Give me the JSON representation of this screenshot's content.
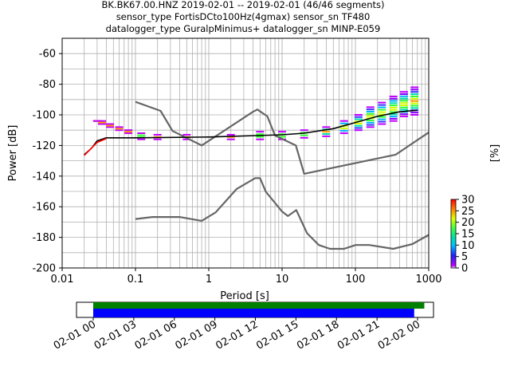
{
  "figure": {
    "title_lines": [
      "BK.BK67.00.HNZ   2019-02-01 -- 2019-02-01  (46/46 segments)",
      "sensor_type FortisDCto100Hz(4gmax) sensor_sn TF480",
      "datalogger_type GuralpMinimus+ datalogger_sn MINP-E059"
    ]
  },
  "chart_data": [
    {
      "type": "line",
      "title": "",
      "xlabel": "Period [s]",
      "ylabel": "Power [dB]",
      "xscale": "log",
      "xlim": [
        0.01,
        1000
      ],
      "ylim": [
        -200,
        -50
      ],
      "x_ticks": [
        "0.01",
        "0.1",
        "1",
        "10",
        "100",
        "1000"
      ],
      "y_ticks": [
        "-60",
        "-80",
        "-100",
        "-120",
        "-140",
        "-160",
        "-180",
        "-200"
      ],
      "grid": true,
      "series": [
        {
          "color": "#666666",
          "points": [
            [
              0.1,
              -91.5
            ],
            [
              0.22,
              -97.4
            ],
            [
              0.32,
              -110.5
            ],
            [
              0.8,
              -120
            ],
            [
              4.0,
              -98
            ],
            [
              4.6,
              -96.5
            ],
            [
              6.3,
              -101
            ],
            [
              8.0,
              -113.5
            ],
            [
              15.4,
              -120
            ],
            [
              20,
              -138.5
            ],
            [
              354,
              -126
            ],
            [
              1000,
              -111.5
            ]
          ]
        },
        {
          "color": "#666666",
          "points": [
            [
              0.1,
              -168
            ],
            [
              0.17,
              -166.7
            ],
            [
              0.4,
              -166.7
            ],
            [
              0.8,
              -169.2
            ],
            [
              1.24,
              -163.7
            ],
            [
              2.4,
              -148.4
            ],
            [
              4.3,
              -141.3
            ],
            [
              5.0,
              -141.3
            ],
            [
              6.0,
              -150.2
            ],
            [
              10,
              -163.2
            ],
            [
              12,
              -166.1
            ],
            [
              15.6,
              -162.2
            ],
            [
              21.9,
              -177.3
            ],
            [
              31.6,
              -185
            ],
            [
              45,
              -187.5
            ],
            [
              70,
              -187.5
            ],
            [
              101,
              -185
            ],
            [
              154,
              -185
            ],
            [
              328,
              -187.5
            ],
            [
              600,
              -184.4
            ],
            [
              1000,
              -178.4
            ]
          ]
        },
        {
          "color": "#000000",
          "points": [
            [
              0.02,
              -126
            ],
            [
              0.025,
              -122
            ],
            [
              0.03,
              -117
            ],
            [
              0.04,
              -115
            ],
            [
              0.1,
              -115
            ],
            [
              1,
              -114.5
            ],
            [
              10,
              -113
            ],
            [
              20,
              -112
            ],
            [
              50,
              -109
            ],
            [
              100,
              -105
            ],
            [
              200,
              -101
            ],
            [
              400,
              -98
            ],
            [
              700,
              -97
            ]
          ]
        },
        {
          "color": "#ff0000",
          "points": [
            [
              0.02,
              -126.5
            ],
            [
              0.03,
              -118
            ],
            [
              0.04,
              -115.5
            ]
          ]
        }
      ],
      "colorbar": {
        "label": "[%]",
        "range": [
          0,
          30
        ],
        "ticks": [
          "0",
          "5",
          "10",
          "15",
          "20",
          "25",
          "30"
        ]
      }
    },
    {
      "type": "timeline",
      "x_ticks": [
        "02-01 00",
        "02-01 03",
        "02-01 06",
        "02-01 09",
        "02-01 12",
        "02-01 15",
        "02-01 18",
        "02-01 21",
        "02-02 00"
      ],
      "series": [
        {
          "color": "#008000",
          "start": "02-01 00:00",
          "end": "02-02 00:30"
        },
        {
          "color": "#0000ff",
          "start": "02-01 00:00",
          "end": "02-01 23:45"
        }
      ]
    }
  ]
}
